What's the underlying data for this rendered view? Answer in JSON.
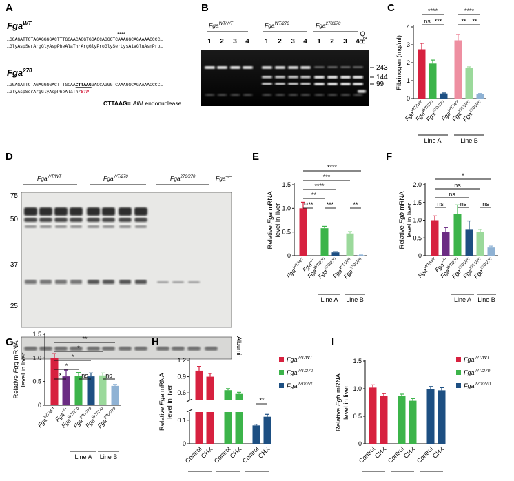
{
  "panels": {
    "A": {
      "letter": "A",
      "wt_title_base": "Fga",
      "wt_title_sup": "WT",
      "wt_marks": "****",
      "wt_seq_dna": "…GGAGATTCTAGAGGGGACTTTGCAACACGTGGACCAGGGTCAAAGGCAGAAAACCCC…",
      "wt_seq_aa": "…GlyAspSerArgGlyAspPheAlaThrArgGlyProGlySerLysAlaGluAsnPro…",
      "mut_title_base": "Fga",
      "mut_title_sup": "270",
      "mut_seq_dna_pre": "…GGAGATTCTAGAGGGGACTTTGCAA",
      "mut_seq_dna_site": "CTTAAG",
      "mut_seq_dna_post": "GACCAGGGTCAAAGGCAGAAAACCCC…",
      "mut_seq_aa_pre": "…GlyAspSerArgGlyAspPheAlaThr",
      "mut_seq_aa_stop": "STP",
      "enzyme_site": "CTTAAG=",
      "enzyme_name": "AflII",
      "enzyme_suffix": "endonuclease"
    },
    "B": {
      "letter": "B",
      "groups": [
        {
          "base": "Fga",
          "sup": "WT/WT"
        },
        {
          "base": "Fga",
          "sup": "WT/270"
        },
        {
          "base": "Fga",
          "sup": "270/270"
        }
      ],
      "lanes": [
        "1",
        "2",
        "3",
        "4",
        "1",
        "2",
        "3",
        "4",
        "1",
        "2",
        "3",
        "4"
      ],
      "water_label": "H",
      "water_sub": "2",
      "water_suffix": "O",
      "sizes": [
        "243",
        "144",
        "99"
      ]
    },
    "C": {
      "letter": "C",
      "ylabel": "Fibrinogen (mg/ml)",
      "line_labels": [
        "Line A",
        "Line B"
      ],
      "sig": [
        "****",
        "ns",
        "***",
        "****",
        "**",
        "**"
      ]
    },
    "D": {
      "letter": "D",
      "mw": [
        "75",
        "50",
        "37",
        "25"
      ],
      "groups": [
        {
          "base": "Fga",
          "sup": "WT/WT"
        },
        {
          "base": "Fga",
          "sup": "WT/270"
        },
        {
          "base": "Fga",
          "sup": "270/270"
        },
        {
          "base": "Fga",
          "sup": "–/–"
        }
      ],
      "albumin_label": "Albumin"
    },
    "E": {
      "letter": "E",
      "ylabel_line1_pre": "Relative ",
      "ylabel_gene": "Fga",
      "ylabel_line1_post": " mRNA",
      "ylabel_line2": "level in liver",
      "line_labels": [
        "Line A",
        "Line B"
      ],
      "sig": [
        "****",
        "***",
        "****",
        "**",
        "****",
        "***",
        "**"
      ]
    },
    "F": {
      "letter": "F",
      "ylabel_line1_pre": "Relative ",
      "ylabel_gene": "Fgb",
      "ylabel_line1_post": " mRNA",
      "ylabel_line2": "level in liver",
      "line_labels": [
        "Line A",
        "Line B"
      ],
      "sig": [
        "*",
        "ns",
        "ns",
        "ns",
        "ns",
        "ns"
      ]
    },
    "G": {
      "letter": "G",
      "ylabel_line1_pre": "Relative ",
      "ylabel_gene": "Fgg",
      "ylabel_line1_post": " mRNA",
      "ylabel_line2": "level in liver",
      "line_labels": [
        "Line A",
        "Line B"
      ],
      "sig": [
        "**",
        "*",
        "*",
        "*",
        "*",
        "ns",
        "ns"
      ]
    },
    "H": {
      "letter": "H",
      "ylabel_line1_pre": "Relative ",
      "ylabel_gene": "Fga",
      "ylabel_line1_post": " mRNA",
      "ylabel_line2": "level in liver",
      "sig": [
        "**"
      ]
    },
    "I": {
      "letter": "I",
      "ylabel_line1_pre": "Relative ",
      "ylabel_gene": "Fgb",
      "ylabel_line1_post": " mRNA",
      "ylabel_line2": "level in liver"
    }
  },
  "colors": {
    "red": "#d7213f",
    "purple": "#6b2c83",
    "green": "#3cb44a",
    "navy": "#1d4f82",
    "pink": "#ee8fa1",
    "lightgreen": "#9bd99b",
    "lightblue": "#8fb2d4"
  },
  "chart_data": [
    {
      "panel": "C",
      "type": "bar",
      "categories": [
        "Fga WT/WT",
        "Fga WT/270",
        "Fga 270/270",
        "Fga WT/WT",
        "Fga WT/270",
        "Fga 270/270"
      ],
      "groups": [
        "Line A",
        "Line A",
        "Line A",
        "Line B",
        "Line B",
        "Line B"
      ],
      "values": [
        2.75,
        1.95,
        0.28,
        3.25,
        1.7,
        0.25
      ],
      "errors": [
        0.33,
        0.2,
        0.03,
        0.32,
        0.07,
        0.03
      ],
      "colors": [
        "#d7213f",
        "#3cb44a",
        "#1d4f82",
        "#ee8fa1",
        "#9bd99b",
        "#8fb2d4"
      ],
      "ylabel": "Fibrinogen (mg/ml)",
      "ylim": [
        0,
        4
      ],
      "yticks": [
        0,
        1,
        2,
        3,
        4
      ]
    },
    {
      "panel": "E",
      "type": "bar",
      "categories": [
        "Fga WT/WT",
        "Fga –/–",
        "Fga WT/270",
        "Fga 270/270",
        "Fga WT/270",
        "Fga 270/270"
      ],
      "values": [
        1.0,
        0.0,
        0.58,
        0.07,
        0.47,
        0.01
      ],
      "errors": [
        0.13,
        0.0,
        0.04,
        0.015,
        0.04,
        0.005
      ],
      "colors": [
        "#d7213f",
        "#6b2c83",
        "#3cb44a",
        "#1d4f82",
        "#9bd99b",
        "#8fb2d4"
      ],
      "ylabel": "Relative Fga mRNA level in liver",
      "ylim": [
        0,
        1.5
      ],
      "yticks": [
        0,
        0.5,
        1.0,
        1.5
      ]
    },
    {
      "panel": "F",
      "type": "bar",
      "categories": [
        "Fga WT/WT",
        "Fga –/–",
        "Fga WT/270",
        "Fga 270/270",
        "Fga WT/270",
        "Fga 270/270"
      ],
      "values": [
        1.0,
        0.66,
        1.18,
        0.73,
        0.66,
        0.23
      ],
      "errors": [
        0.12,
        0.13,
        0.25,
        0.25,
        0.08,
        0.04
      ],
      "colors": [
        "#d7213f",
        "#6b2c83",
        "#3cb44a",
        "#1d4f82",
        "#9bd99b",
        "#8fb2d4"
      ],
      "ylabel": "Relative Fgb mRNA level in liver",
      "ylim": [
        0,
        2.0
      ],
      "yticks": [
        0,
        0.5,
        1.0,
        1.5,
        2.0
      ]
    },
    {
      "panel": "G",
      "type": "bar",
      "categories": [
        "Fga WT/WT",
        "Fga –/–",
        "Fga WT/270",
        "Fga 270/270",
        "Fga WT/270",
        "Fga 270/270"
      ],
      "values": [
        1.0,
        0.61,
        0.62,
        0.61,
        0.63,
        0.41
      ],
      "errors": [
        0.09,
        0.13,
        0.07,
        0.07,
        0.05,
        0.03
      ],
      "colors": [
        "#d7213f",
        "#6b2c83",
        "#3cb44a",
        "#1d4f82",
        "#9bd99b",
        "#8fb2d4"
      ],
      "ylabel": "Relative Fgg mRNA level in liver",
      "ylim": [
        0,
        1.5
      ],
      "yticks": [
        0,
        0.5,
        1.0,
        1.5
      ]
    },
    {
      "panel": "H",
      "type": "bar",
      "categories": [
        "Control",
        "CHX",
        "Control",
        "CHX",
        "Control",
        "CHX"
      ],
      "values": [
        1.01,
        0.9,
        0.65,
        0.58,
        0.078,
        0.115
      ],
      "errors": [
        0.08,
        0.06,
        0.03,
        0.03,
        0.005,
        0.01
      ],
      "colors": [
        "#d7213f",
        "#d7213f",
        "#3cb44a",
        "#3cb44a",
        "#1d4f82",
        "#1d4f82"
      ],
      "series_legend": [
        {
          "base": "Fga",
          "sup": "WT/WT",
          "color": "#d7213f"
        },
        {
          "base": "Fga",
          "sup": "WT/270",
          "color": "#3cb44a"
        },
        {
          "base": "Fga",
          "sup": "270/270",
          "color": "#1d4f82"
        }
      ],
      "ylabel": "Relative Fga mRNA level in liver",
      "yticks_upper": [
        "1.2",
        "0.9",
        "0.6"
      ],
      "yticks_lower": [
        "0.1",
        "0"
      ]
    },
    {
      "panel": "I",
      "type": "bar",
      "categories": [
        "Control",
        "CHX",
        "Control",
        "CHX",
        "Control",
        "CHX"
      ],
      "values": [
        1.02,
        0.87,
        0.87,
        0.78,
        0.99,
        0.97
      ],
      "errors": [
        0.05,
        0.04,
        0.03,
        0.04,
        0.05,
        0.05
      ],
      "colors": [
        "#d7213f",
        "#d7213f",
        "#3cb44a",
        "#3cb44a",
        "#1d4f82",
        "#1d4f82"
      ],
      "series_legend": [
        {
          "base": "Fga",
          "sup": "WT/WT",
          "color": "#d7213f"
        },
        {
          "base": "Fga",
          "sup": "WT/270",
          "color": "#3cb44a"
        },
        {
          "base": "Fga",
          "sup": "270/270",
          "color": "#1d4f82"
        }
      ],
      "ylabel": "Relative Fgb mRNA level in liver",
      "ylim": [
        0,
        1.5
      ],
      "yticks": [
        0,
        0.5,
        1.0,
        1.5
      ]
    }
  ]
}
